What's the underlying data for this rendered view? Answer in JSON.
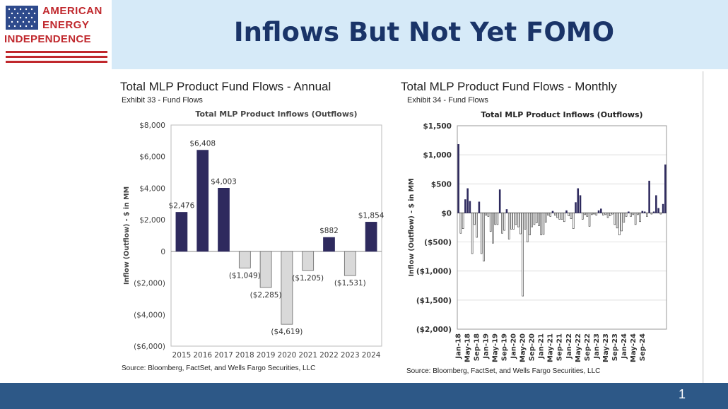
{
  "header": {
    "title": "Inflows But Not Yet FOMO"
  },
  "logo": {
    "line1": "AMERICAN",
    "line2": "ENERGY",
    "line3": "INDEPENDENCE"
  },
  "footer": {
    "page_number": "1"
  },
  "colors": {
    "positive": "#2e2a5e",
    "negative": "#d9d9d9",
    "header_bg": "#d6eaf8",
    "footer_bg": "#2d5887",
    "title": "#1a3468",
    "logo_red": "#c0282d"
  },
  "left_panel": {
    "title": "Total MLP Product Fund Flows - Annual",
    "subtitle": "Exhibit 33 - Fund Flows",
    "source": "Source: Bloomberg, FactSet, and Wells Fargo Securities, LLC"
  },
  "right_panel": {
    "title": "Total MLP Product Fund Flows - Monthly",
    "subtitle": "Exhibit 34 - Fund Flows",
    "source": "Source: Bloomberg, FactSet, and Wells Fargo Securities, LLC"
  },
  "chart_data": [
    {
      "type": "bar",
      "title": "Total MLP Product Inflows (Outflows)",
      "ylabel": "Inflow (Outflow) - $ in MM",
      "xlabel": "",
      "ylim": [
        -6000,
        8000
      ],
      "yticks": [
        8000,
        6000,
        4000,
        2000,
        0,
        -2000,
        -4000,
        -6000
      ],
      "ytick_labels": [
        "$8,000",
        "$6,000",
        "$4,000",
        "$2,000",
        "0",
        "($2,000)",
        "($4,000)",
        "($6,000)"
      ],
      "categories": [
        "2015",
        "2016",
        "2017",
        "2018",
        "2019",
        "2020",
        "2021",
        "2022",
        "2023",
        "2024"
      ],
      "values": [
        2476,
        6408,
        4003,
        -1049,
        -2285,
        -4619,
        -1205,
        882,
        -1531,
        1854
      ],
      "data_labels": [
        "$2,476",
        "$6,408",
        "$4,003",
        "($1,049)",
        "($2,285)",
        "($4,619)",
        "($1,205)",
        "$882",
        "($1,531)",
        "$1,854"
      ],
      "grid": false
    },
    {
      "type": "bar",
      "title": "Total MLP Product Inflows (Outflows)",
      "ylabel": "Inflow (Outflow) - $ in MM",
      "xlabel": "",
      "ylim": [
        -2000,
        1500
      ],
      "yticks": [
        1500,
        1000,
        500,
        0,
        -500,
        -1000,
        -1500,
        -2000
      ],
      "ytick_labels": [
        "$1,500",
        "$1,000",
        "$500",
        "$0",
        "($500)",
        "($1,000)",
        "($1,500)",
        "($2,000)"
      ],
      "tick_labels": [
        "Jan-18",
        "May-18",
        "Sep-18",
        "Jan-19",
        "May-19",
        "Sep-19",
        "Jan-20",
        "May-20",
        "Sep-20",
        "Jan-21",
        "May-21",
        "Sep-21",
        "Jan-22",
        "May-22",
        "Sep-22",
        "Jan-23",
        "May-23",
        "Sep-23",
        "Jan-24",
        "May-24",
        "Sep-24"
      ],
      "start_month": "Jan-18",
      "values": [
        1180,
        -350,
        -270,
        230,
        420,
        200,
        -700,
        -200,
        -420,
        190,
        -700,
        -830,
        -40,
        -60,
        -320,
        -520,
        -200,
        -200,
        400,
        -350,
        -300,
        60,
        -450,
        -280,
        -280,
        -200,
        -240,
        -360,
        -1430,
        -280,
        -500,
        -380,
        -240,
        -200,
        -170,
        -220,
        -380,
        -370,
        -160,
        -40,
        -60,
        30,
        -40,
        -80,
        -110,
        -110,
        -150,
        40,
        -50,
        -100,
        -270,
        180,
        420,
        300,
        -110,
        -30,
        -60,
        -230,
        -30,
        -20,
        -40,
        40,
        70,
        -40,
        -30,
        -80,
        -50,
        -20,
        -200,
        -260,
        -380,
        -310,
        -160,
        -60,
        20,
        -60,
        -30,
        -200,
        -30,
        -150,
        30,
        20,
        -60,
        550,
        -20,
        20,
        300,
        80,
        -20,
        150,
        830
      ],
      "grid": true
    }
  ]
}
